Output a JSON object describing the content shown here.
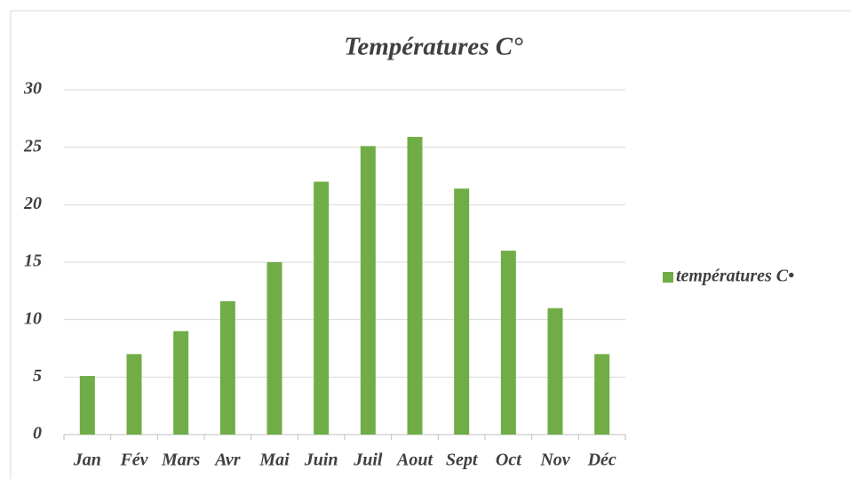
{
  "chart_data": {
    "type": "bar",
    "title": "Températures C°",
    "categories": [
      "Jan",
      "Fév",
      "Mars",
      "Avr",
      "Mai",
      "Juin",
      "Juil",
      "Aout",
      "Sept",
      "Oct",
      "Nov",
      "Déc"
    ],
    "series": [
      {
        "name": "températures C•",
        "color": "#70ad47",
        "values": [
          5.1,
          7,
          9,
          11.6,
          15,
          22,
          25.1,
          25.9,
          21.4,
          16,
          11,
          7
        ]
      }
    ],
    "ylim": [
      0,
      30
    ],
    "yticks": [
      0,
      5,
      10,
      15,
      20,
      25,
      30
    ],
    "grid": true,
    "legend": "right"
  }
}
